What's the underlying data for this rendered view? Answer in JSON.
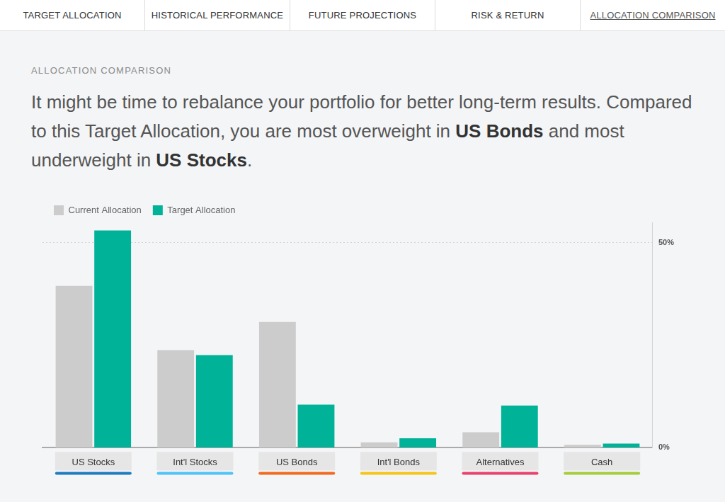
{
  "tabs": [
    {
      "label": "TARGET ALLOCATION",
      "active": false
    },
    {
      "label": "HISTORICAL PERFORMANCE",
      "active": false
    },
    {
      "label": "FUTURE PROJECTIONS",
      "active": false
    },
    {
      "label": "RISK & RETURN",
      "active": false
    },
    {
      "label": "ALLOCATION COMPARISON",
      "active": true
    }
  ],
  "section_label": "ALLOCATION COMPARISON",
  "headline": [
    {
      "text": "It might be time to rebalance your portfolio for better long-term results. Compared to this Target Allocation, you are most overweight in ",
      "bold": false
    },
    {
      "text": "US Bonds",
      "bold": true
    },
    {
      "text": " and most underweight in ",
      "bold": false
    },
    {
      "text": "US Stocks",
      "bold": true
    },
    {
      "text": ".",
      "bold": false
    }
  ],
  "chart_data": {
    "type": "bar",
    "categories": [
      "US Stocks",
      "Int'l Stocks",
      "US Bonds",
      "Int'l Bonds",
      "Alternatives",
      "Cash"
    ],
    "series": [
      {
        "name": "Current Allocation",
        "color": "#cccccc",
        "values": [
          39.5,
          23.8,
          30.7,
          1.3,
          3.8,
          0.7
        ]
      },
      {
        "name": "Target Allocation",
        "color": "#00b398",
        "values": [
          53.0,
          22.6,
          10.5,
          2.3,
          10.3,
          1.0
        ]
      }
    ],
    "ylim": [
      0,
      55
    ],
    "yticks": [
      {
        "value": 0,
        "label": "0%"
      },
      {
        "value": 50,
        "label": "50%"
      }
    ],
    "grid": true,
    "legend": "top-left"
  }
}
